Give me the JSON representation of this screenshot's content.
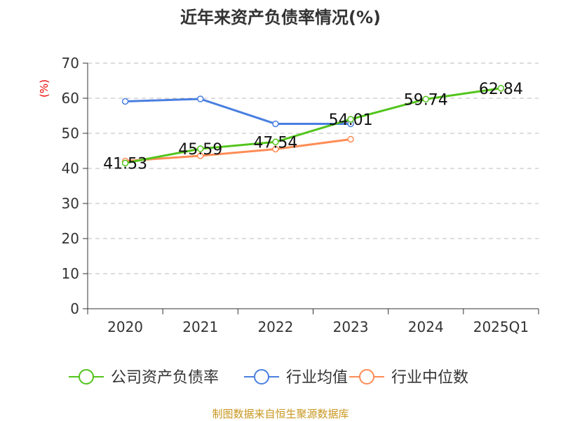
{
  "chart_data": {
    "type": "line",
    "title": "近年来资产负债率情况(%)",
    "ylabel": "(%)",
    "xlabel": "",
    "ylim": [
      0,
      70
    ],
    "yticks": [
      0,
      10,
      20,
      30,
      40,
      50,
      60,
      70
    ],
    "grid": true,
    "legend_position": "bottom",
    "categories": [
      "2020",
      "2021",
      "2022",
      "2023",
      "2024",
      "2025Q1"
    ],
    "series": [
      {
        "name": "公司资产负债率",
        "color": "#52c41a",
        "values": [
          41.53,
          45.59,
          47.54,
          54.01,
          59.74,
          62.84
        ],
        "labels": [
          "41.53",
          "45.59",
          "47.54",
          "54.01",
          "59.74",
          "62.84"
        ]
      },
      {
        "name": "行业均值",
        "color": "#4a7fe0",
        "values": [
          59.1,
          59.8,
          52.7,
          52.7,
          null,
          null
        ]
      },
      {
        "name": "行业中位数",
        "color": "#ff8c55",
        "values": [
          42.1,
          43.6,
          45.5,
          48.3,
          null,
          null
        ]
      }
    ],
    "source": "制图数据来自恒生聚源数据库"
  }
}
